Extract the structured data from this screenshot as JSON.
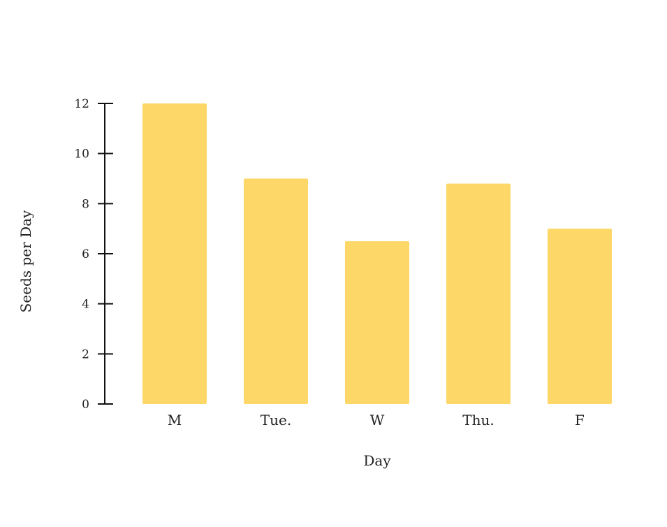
{
  "chart_data": {
    "type": "bar",
    "title": "",
    "xlabel": "Day",
    "ylabel": "Seeds per Day",
    "categories": [
      "M",
      "Tue.",
      "W",
      "Thu.",
      "F"
    ],
    "values": [
      12,
      9,
      6.5,
      8.8,
      7
    ],
    "ylim": [
      0,
      12
    ],
    "yticks": [
      0,
      2,
      4,
      6,
      8,
      10,
      12
    ],
    "grid": false,
    "legend": "none",
    "colors": {
      "bar": "#fdd768",
      "axis": "#111111",
      "text": "#222222"
    }
  }
}
